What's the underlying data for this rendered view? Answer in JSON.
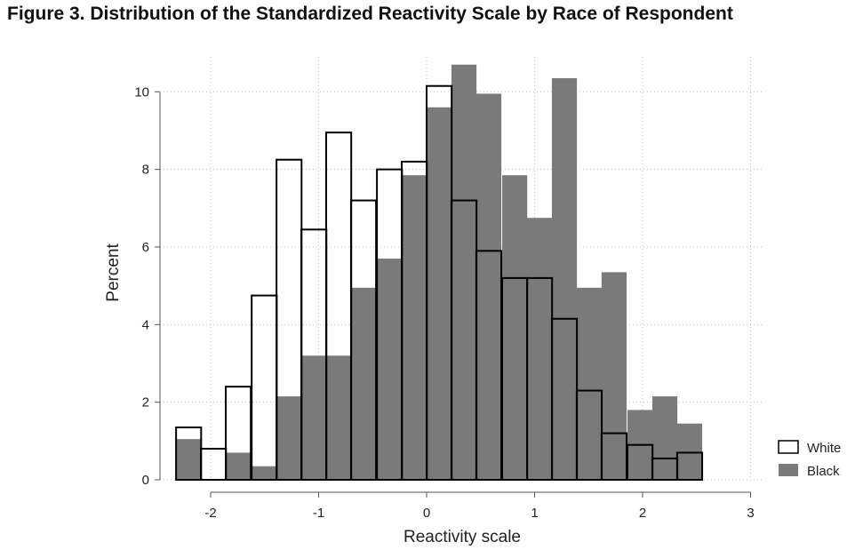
{
  "figure": {
    "title": "Figure 3.  Distribution of the Standardized Reactivity Scale by Race of Respondent"
  },
  "chart_data": {
    "type": "bar",
    "subtype": "overlaid-histogram",
    "title": "Figure 3.  Distribution of the Standardized Reactivity Scale by Race of Respondent",
    "xlabel": "Reactivity scale",
    "ylabel": "Percent",
    "xlim": [
      -2.35,
      3.0
    ],
    "ylim": [
      0,
      10.9
    ],
    "x_ticks": [
      -2,
      -1,
      0,
      1,
      2,
      3
    ],
    "x_tick_labels": [
      "-2",
      "-1",
      "0",
      "1",
      "2",
      "3"
    ],
    "y_ticks": [
      0,
      2,
      4,
      6,
      8,
      10
    ],
    "y_tick_labels": [
      "0",
      "2",
      "4",
      "6",
      "8",
      "10"
    ],
    "grid": true,
    "legend_position": "right-bottom",
    "bin_starts": [
      -2.32,
      -2.09,
      -1.86,
      -1.62,
      -1.39,
      -1.16,
      -0.93,
      -0.7,
      -0.46,
      -0.23,
      0.0,
      0.23,
      0.46,
      0.7,
      0.93,
      1.16,
      1.39,
      1.62,
      1.86,
      2.09,
      2.32
    ],
    "bin_width": 0.232,
    "series": [
      {
        "name": "Black",
        "color": "#7a7a7a",
        "values": [
          1.05,
          0.0,
          0.7,
          0.35,
          2.15,
          3.2,
          3.2,
          4.95,
          5.7,
          7.85,
          9.6,
          10.7,
          9.95,
          7.85,
          6.75,
          10.35,
          4.95,
          5.35,
          1.8,
          2.15,
          1.45
        ]
      },
      {
        "name": "White",
        "color": "#ffffff",
        "values": [
          1.35,
          0.8,
          2.4,
          4.75,
          8.25,
          6.45,
          8.95,
          7.2,
          8.0,
          8.2,
          10.15,
          7.2,
          5.9,
          5.2,
          5.2,
          4.15,
          2.3,
          1.2,
          0.9,
          0.55,
          0.7
        ]
      }
    ]
  }
}
